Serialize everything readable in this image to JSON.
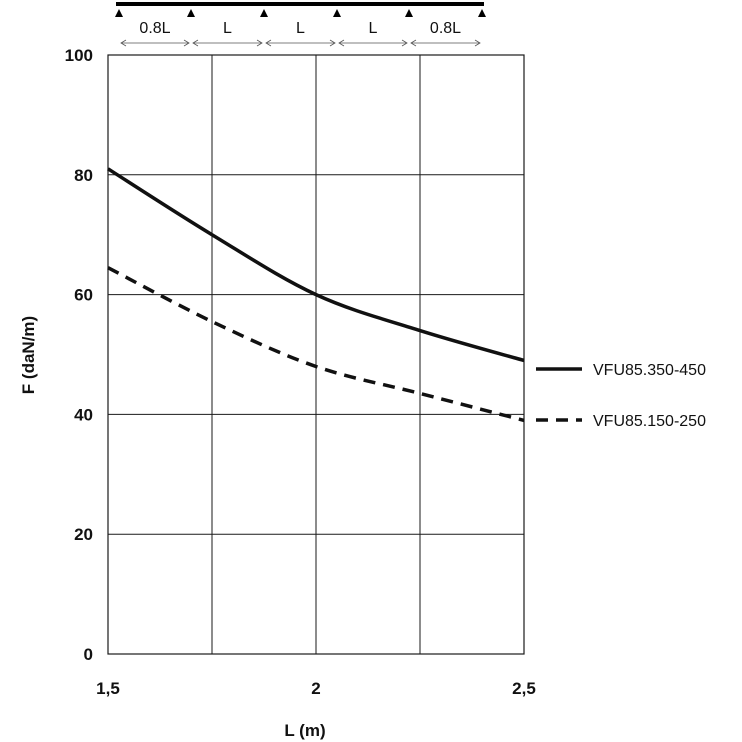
{
  "chart_data": {
    "type": "line",
    "title": "",
    "xlabel": "L (m)",
    "ylabel": "F (daN/m)",
    "xlim": [
      1.5,
      2.5
    ],
    "ylim": [
      0,
      100
    ],
    "x_ticks": [
      "1,5",
      "2",
      "2,5"
    ],
    "y_ticks": [
      "0",
      "20",
      "40",
      "60",
      "80",
      "100"
    ],
    "grid": true,
    "legend_position": "right",
    "series": [
      {
        "name": "VFU85.350-450",
        "style": "solid",
        "x": [
          1.5,
          1.75,
          2.0,
          2.25,
          2.5
        ],
        "y": [
          81,
          70,
          60,
          54,
          49
        ]
      },
      {
        "name": "VFU85.150-250",
        "style": "dashed",
        "x": [
          1.5,
          1.75,
          2.0,
          2.25,
          2.5
        ],
        "y": [
          64.5,
          55.5,
          48,
          43.5,
          39
        ]
      }
    ],
    "span_diagram": {
      "labels": [
        "0.8L",
        "L",
        "L",
        "L",
        "0.8L"
      ]
    }
  }
}
